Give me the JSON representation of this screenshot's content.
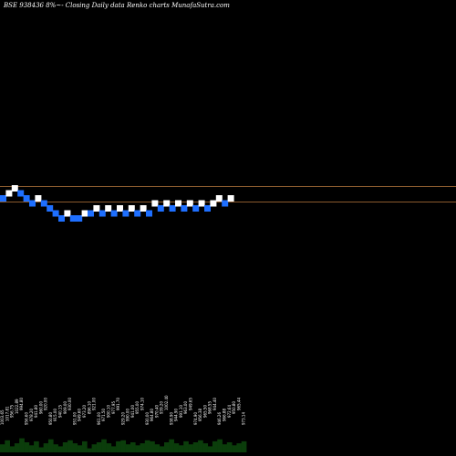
{
  "chart_title": "BSE 938436  8%~- Closing Daily data  Renko  charts MunafaSutra.com",
  "colors": {
    "background": "#000000",
    "up_brick": "#ffffff",
    "down_brick": "#1e6fff",
    "ref_line": "#8a5a2e",
    "volume": "#0b3d0b"
  },
  "chart_data": {
    "type": "renko",
    "title": "BSE 938436  8%~- Closing Daily data  Renko  charts MunafaSutra.com",
    "bricks": [
      {
        "dir": "down",
        "level": 0
      },
      {
        "dir": "up",
        "level": 1
      },
      {
        "dir": "up",
        "level": 2
      },
      {
        "dir": "down",
        "level": 1
      },
      {
        "dir": "down",
        "level": 0
      },
      {
        "dir": "down",
        "level": -1
      },
      {
        "dir": "up",
        "level": 0
      },
      {
        "dir": "down",
        "level": -1
      },
      {
        "dir": "down",
        "level": -2
      },
      {
        "dir": "down",
        "level": -3
      },
      {
        "dir": "down",
        "level": -4
      },
      {
        "dir": "up",
        "level": -3
      },
      {
        "dir": "down",
        "level": -4
      },
      {
        "dir": "down",
        "level": -4
      },
      {
        "dir": "up",
        "level": -3
      },
      {
        "dir": "down",
        "level": -3
      },
      {
        "dir": "up",
        "level": -2
      },
      {
        "dir": "down",
        "level": -3
      },
      {
        "dir": "up",
        "level": -2
      },
      {
        "dir": "down",
        "level": -3
      },
      {
        "dir": "up",
        "level": -2
      },
      {
        "dir": "down",
        "level": -3
      },
      {
        "dir": "up",
        "level": -2
      },
      {
        "dir": "down",
        "level": -3
      },
      {
        "dir": "up",
        "level": -2
      },
      {
        "dir": "down",
        "level": -3
      },
      {
        "dir": "up",
        "level": -1
      },
      {
        "dir": "down",
        "level": -2
      },
      {
        "dir": "up",
        "level": -1
      },
      {
        "dir": "down",
        "level": -2
      },
      {
        "dir": "up",
        "level": -1
      },
      {
        "dir": "down",
        "level": -2
      },
      {
        "dir": "up",
        "level": -1
      },
      {
        "dir": "down",
        "level": -2
      },
      {
        "dir": "up",
        "level": -1
      },
      {
        "dir": "down",
        "level": -2
      },
      {
        "dir": "up",
        "level": -1
      },
      {
        "dir": "up",
        "level": 0
      },
      {
        "dir": "down",
        "level": -1
      },
      {
        "dir": "up",
        "level": 0
      }
    ],
    "reference_lines": [
      "upper",
      "lower"
    ],
    "volume_labels": [
      "1003.65",
      "1017.81",
      "956.75",
      "1022.89",
      "994.80",
      "956.60",
      "978.20",
      "941.80",
      "960.00",
      "920.00",
      "950.80",
      "915.00",
      "940.15",
      "909.00",
      "930.00",
      "951.00",
      "949.60",
      "973.20",
      "896.10",
      "921.00",
      "961.00",
      "971.50",
      "900.10",
      "977.95",
      "991.70",
      "929.20",
      "990.00",
      "941.00",
      "955.00",
      "974.10",
      "930.00",
      "964.80",
      "970.40",
      "939.20",
      "1002.40",
      "938.90",
      "944.90",
      "991.10",
      "963.00",
      "949.65",
      "974.90",
      "956.38",
      "965.50",
      "968.55",
      "944.40",
      "946.26",
      "966.88",
      "972.64",
      "950.80",
      "965.44",
      "973.14"
    ],
    "volume_bars": [
      8,
      12,
      6,
      9,
      14,
      10,
      7,
      11,
      5,
      9,
      13,
      8,
      6,
      10,
      12,
      9,
      7,
      11,
      4,
      8,
      10,
      13,
      9,
      6,
      11,
      12,
      8,
      10,
      7,
      9,
      12,
      11,
      8,
      6,
      10,
      13,
      9,
      7,
      11,
      8,
      10,
      12,
      9,
      6,
      11,
      13,
      8,
      10,
      7,
      9,
      11
    ]
  }
}
